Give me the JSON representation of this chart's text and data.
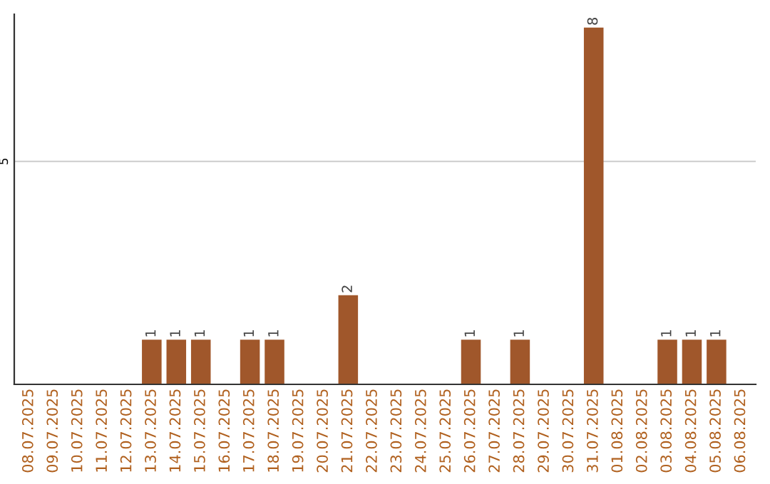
{
  "chart_data": {
    "type": "bar",
    "categories": [
      "08.07.2025",
      "09.07.2025",
      "10.07.2025",
      "11.07.2025",
      "12.07.2025",
      "13.07.2025",
      "14.07.2025",
      "15.07.2025",
      "16.07.2025",
      "17.07.2025",
      "18.07.2025",
      "19.07.2025",
      "20.07.2025",
      "21.07.2025",
      "22.07.2025",
      "23.07.2025",
      "24.07.2025",
      "25.07.2025",
      "26.07.2025",
      "27.07.2025",
      "28.07.2025",
      "29.07.2025",
      "30.07.2025",
      "31.07.2025",
      "01.08.2025",
      "02.08.2025",
      "03.08.2025",
      "04.08.2025",
      "05.08.2025",
      "06.08.2025"
    ],
    "values": [
      0,
      0,
      0,
      0,
      0,
      1,
      1,
      1,
      0,
      1,
      1,
      0,
      0,
      2,
      0,
      0,
      0,
      0,
      1,
      0,
      1,
      0,
      0,
      8,
      0,
      0,
      1,
      1,
      1,
      0
    ],
    "value_labels": [
      null,
      null,
      null,
      null,
      null,
      "1",
      "1",
      "1",
      null,
      "1",
      "1",
      null,
      null,
      "2",
      null,
      null,
      null,
      null,
      "1",
      null,
      "1",
      null,
      null,
      "8",
      null,
      null,
      "1",
      "1",
      "1",
      null
    ],
    "color": "#a0572b",
    "ylim": [
      0,
      8.3
    ],
    "yticks": [
      5
    ],
    "grid": "y"
  }
}
